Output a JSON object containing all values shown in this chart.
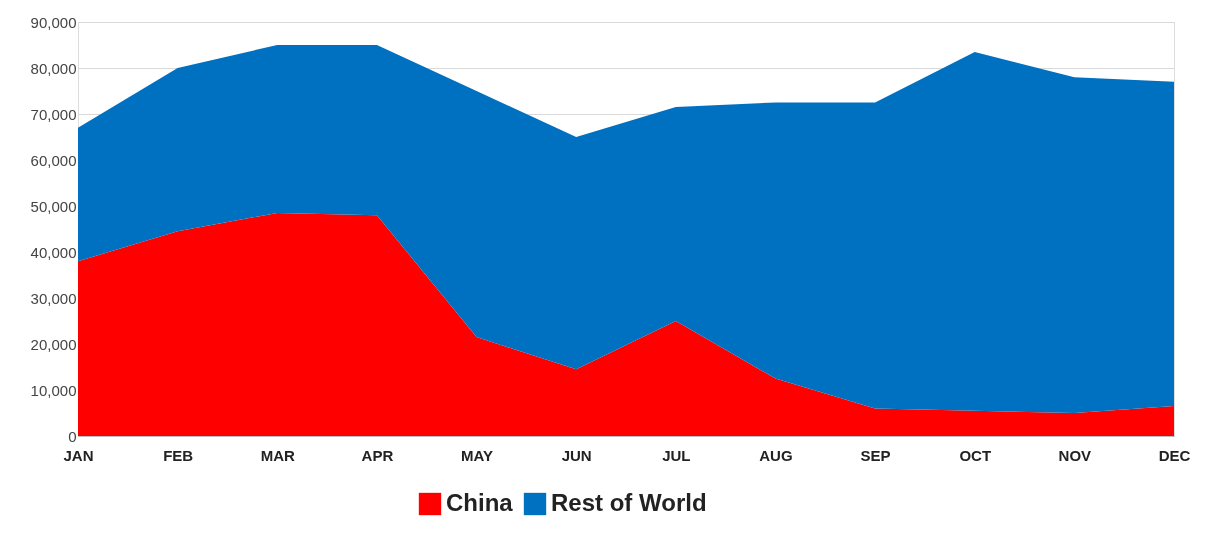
{
  "chart_data": {
    "type": "area",
    "stacked": true,
    "categories": [
      "JAN",
      "FEB",
      "MAR",
      "APR",
      "MAY",
      "JUN",
      "JUL",
      "AUG",
      "SEP",
      "OCT",
      "NOV",
      "DEC"
    ],
    "series": [
      {
        "name": "China",
        "color": "#ff0000",
        "values": [
          38000,
          44500,
          48500,
          48000,
          21500,
          14500,
          25000,
          12500,
          6000,
          5500,
          5000,
          6500
        ]
      },
      {
        "name": "Rest of World",
        "color": "#0070c0",
        "values": [
          29000,
          35500,
          36500,
          37000,
          53500,
          50500,
          46500,
          60000,
          66500,
          78000,
          73000,
          70500
        ]
      }
    ],
    "ylim": [
      0,
      90000
    ],
    "yticks": [
      {
        "value": 0,
        "label": "0"
      },
      {
        "value": 10000,
        "label": "10,000"
      },
      {
        "value": 20000,
        "label": "20,000"
      },
      {
        "value": 30000,
        "label": "30,000"
      },
      {
        "value": 40000,
        "label": "40,000"
      },
      {
        "value": 50000,
        "label": "50,000"
      },
      {
        "value": 60000,
        "label": "60,000"
      },
      {
        "value": 70000,
        "label": "70,000"
      },
      {
        "value": 80000,
        "label": "80,000"
      },
      {
        "value": 90000,
        "label": "90,000"
      }
    ],
    "grid": "y",
    "legend": "bottom"
  }
}
